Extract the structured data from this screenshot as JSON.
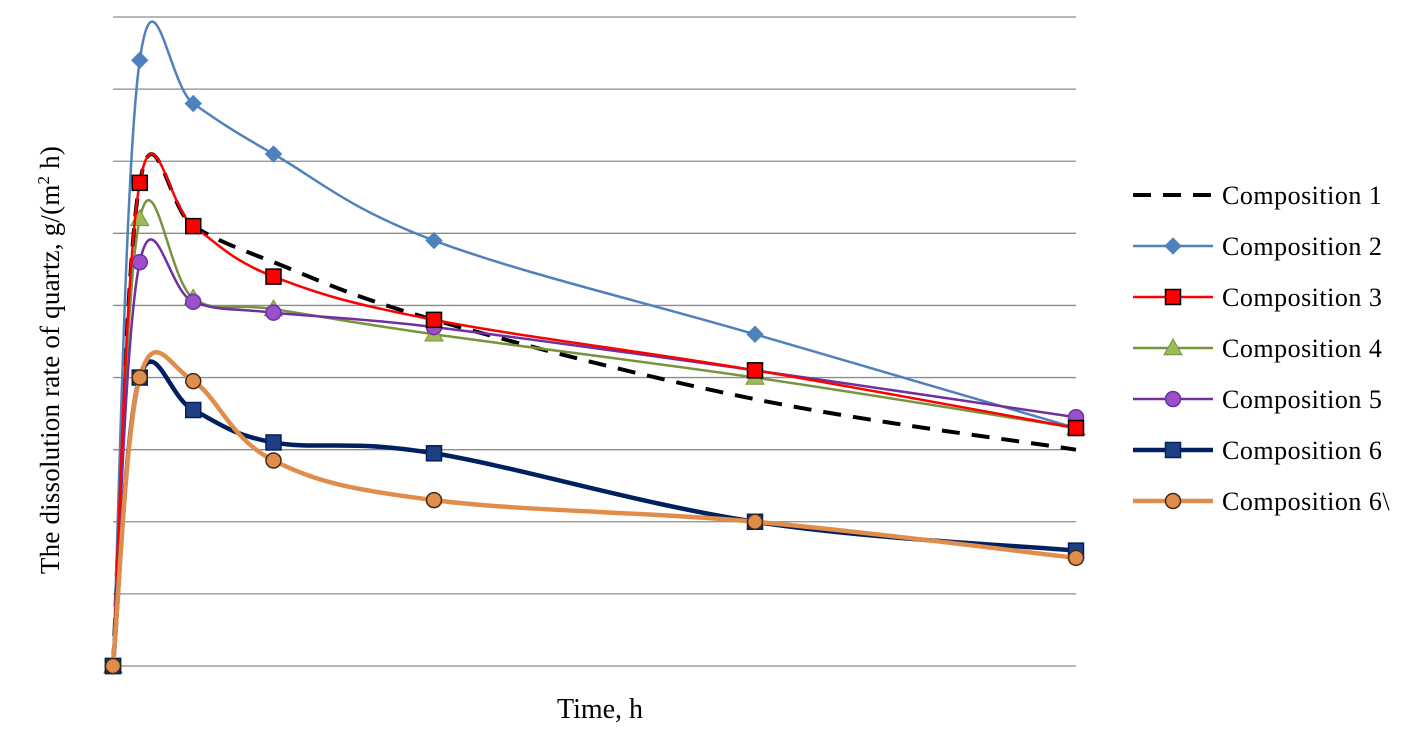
{
  "chart_data": {
    "type": "line",
    "title": "",
    "xlabel": "Time,  h",
    "ylabel_main": "The dissolution  rate of quartz,  g/(m",
    "ylabel_sup": "2",
    "ylabel_end": " h)",
    "x": [
      0,
      0.05,
      0.15,
      0.3,
      0.6,
      1.2,
      1.8
    ],
    "xlim": [
      0,
      1.8
    ],
    "ylim": [
      0,
      9
    ],
    "grid": true,
    "legend_position": "right",
    "series": [
      {
        "name": "Composition 1",
        "color": "#000000",
        "marker": "none",
        "dash": true,
        "values": [
          0,
          6.7,
          6.1,
          5.6,
          4.8,
          3.7,
          3.0
        ]
      },
      {
        "name": "Composition 2",
        "color": "#4f81bd",
        "marker": "diamond",
        "values": [
          0,
          8.4,
          7.8,
          7.1,
          5.9,
          4.6,
          3.3
        ]
      },
      {
        "name": "Composition 3",
        "color": "#ff0000",
        "marker": "square",
        "markerFill": "#ff0000",
        "markerStroke": "#000000",
        "values": [
          0,
          6.7,
          6.1,
          5.4,
          4.8,
          4.1,
          3.3
        ]
      },
      {
        "name": "Composition 4",
        "color": "#77933c",
        "marker": "triangle",
        "markerFill": "#9bbb59",
        "values": [
          0,
          6.2,
          5.1,
          4.95,
          4.6,
          4.0,
          3.3
        ]
      },
      {
        "name": "Composition 5",
        "color": "#7030a0",
        "marker": "circle",
        "markerFill": "#9b4fc9",
        "values": [
          0,
          5.6,
          5.05,
          4.9,
          4.7,
          4.1,
          3.45
        ]
      },
      {
        "name": "Composition 6",
        "color": "#002060",
        "marker": "square",
        "markerFill": "#1f3f85",
        "values": [
          0,
          4.0,
          3.55,
          3.1,
          2.95,
          2.0,
          1.6
        ]
      },
      {
        "name": "Composition 6\\",
        "color": "#e08d4c",
        "marker": "circle",
        "markerFill": "#e08d4c",
        "markerStroke": "#3f2a18",
        "values": [
          0,
          4.0,
          3.95,
          2.85,
          2.3,
          2.0,
          1.5
        ]
      }
    ]
  }
}
